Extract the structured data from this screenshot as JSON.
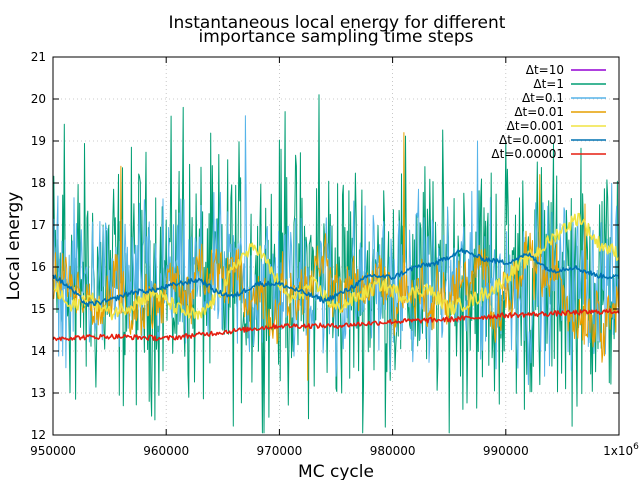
{
  "chart_data": {
    "type": "line",
    "title_line1": "Instantaneous local energy for different",
    "title_line2": "importance sampling time steps",
    "xlabel": "MC cycle",
    "ylabel": "Local energy",
    "xlim": [
      950000,
      1000000
    ],
    "ylim": [
      12,
      21
    ],
    "xticks": [
      950000,
      960000,
      970000,
      980000,
      990000,
      1000000
    ],
    "xtick_labels": [
      "950000",
      "960000",
      "970000",
      "980000",
      "990000",
      "1x10"
    ],
    "xtick_last_exponent": "6",
    "yticks": [
      12,
      13,
      14,
      15,
      16,
      17,
      18,
      19,
      20,
      21
    ],
    "grid": true,
    "legend_position": "top-right",
    "series": [
      {
        "name": "Δt=10",
        "color": "#9400d3",
        "style": "none"
      },
      {
        "name": "Δt=1",
        "color": "#009e73",
        "style": "noisy",
        "mean": 15.7,
        "amp": 1.45,
        "smooth": 0.0,
        "spikes": [
          [
            951000,
            19.4
          ],
          [
            952000,
            12.85
          ],
          [
            961500,
            19.8
          ],
          [
            970500,
            19.7
          ],
          [
            973500,
            20.1
          ],
          [
            975500,
            13.0
          ],
          [
            989000,
            13.05
          ],
          [
            990000,
            19.0
          ],
          [
            993000,
            13.2
          ]
        ]
      },
      {
        "name": "Δt=0.1",
        "color": "#56b4e9",
        "style": "noisy",
        "mean": 15.6,
        "amp": 1.1,
        "smooth": 0.2,
        "spikes": [
          [
            967000,
            19.6
          ],
          [
            975000,
            13.4
          ],
          [
            992000,
            13.2
          ],
          [
            987500,
            19.0
          ]
        ]
      },
      {
        "name": "Δt=0.01",
        "color": "#e69f00",
        "style": "medium",
        "mean": 15.5,
        "amp": 0.9,
        "spikes": [
          [
            956000,
            18.4
          ],
          [
            972500,
            13.3
          ],
          [
            981000,
            19.2
          ],
          [
            993000,
            18.2
          ],
          [
            997000,
            17.5
          ]
        ]
      },
      {
        "name": "Δt=0.001",
        "color": "#f0e442",
        "style": "walk",
        "points": [
          [
            950000,
            15.6
          ],
          [
            951500,
            15.0
          ],
          [
            953000,
            15.3
          ],
          [
            955000,
            14.9
          ],
          [
            957000,
            15.1
          ],
          [
            959000,
            15.4
          ],
          [
            961000,
            15.0
          ],
          [
            963000,
            14.8
          ],
          [
            965000,
            15.5
          ],
          [
            966500,
            16.2
          ],
          [
            968000,
            16.5
          ],
          [
            969500,
            15.8
          ],
          [
            971000,
            15.2
          ],
          [
            973000,
            15.6
          ],
          [
            975000,
            15.0
          ],
          [
            977000,
            15.3
          ],
          [
            979000,
            15.6
          ],
          [
            981000,
            15.3
          ],
          [
            983000,
            15.5
          ],
          [
            985000,
            15.0
          ],
          [
            987000,
            15.2
          ],
          [
            989000,
            15.5
          ],
          [
            991000,
            16.0
          ],
          [
            993000,
            16.4
          ],
          [
            995000,
            16.9
          ],
          [
            996500,
            17.2
          ],
          [
            998000,
            16.6
          ],
          [
            1000000,
            16.3
          ]
        ]
      },
      {
        "name": "Δt=0.0001",
        "color": "#0072b2",
        "style": "walk",
        "points": [
          [
            950000,
            15.8
          ],
          [
            951500,
            15.5
          ],
          [
            953000,
            15.1
          ],
          [
            955000,
            15.2
          ],
          [
            957000,
            15.4
          ],
          [
            959000,
            15.45
          ],
          [
            961000,
            15.6
          ],
          [
            963000,
            15.7
          ],
          [
            964500,
            15.4
          ],
          [
            966000,
            15.3
          ],
          [
            968000,
            15.6
          ],
          [
            970000,
            15.6
          ],
          [
            972000,
            15.4
          ],
          [
            974000,
            15.2
          ],
          [
            976000,
            15.45
          ],
          [
            978000,
            15.8
          ],
          [
            980000,
            15.75
          ],
          [
            982000,
            16.0
          ],
          [
            984000,
            16.1
          ],
          [
            986000,
            16.4
          ],
          [
            988000,
            16.2
          ],
          [
            990000,
            16.1
          ],
          [
            992000,
            16.3
          ],
          [
            994000,
            15.9
          ],
          [
            996000,
            16.0
          ],
          [
            998000,
            15.8
          ],
          [
            1000000,
            15.75
          ]
        ]
      },
      {
        "name": "Δt=0.00001",
        "color": "#e51e10",
        "style": "walk",
        "points": [
          [
            950000,
            14.3
          ],
          [
            955000,
            14.35
          ],
          [
            960000,
            14.3
          ],
          [
            965000,
            14.45
          ],
          [
            970000,
            14.6
          ],
          [
            975000,
            14.6
          ],
          [
            980000,
            14.7
          ],
          [
            985000,
            14.75
          ],
          [
            990000,
            14.85
          ],
          [
            995000,
            14.9
          ],
          [
            1000000,
            14.95
          ]
        ]
      }
    ]
  }
}
